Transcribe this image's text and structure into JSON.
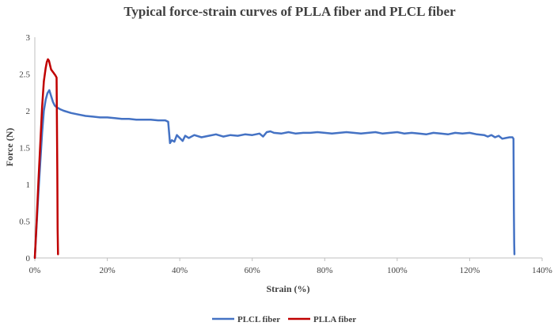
{
  "chart_data": {
    "type": "line",
    "title": "Typical force-strain curves of PLLA fiber and PLCL fiber",
    "xlabel": "Strain (%)",
    "ylabel": "Force (N)",
    "xlim": [
      0,
      140
    ],
    "ylim": [
      0,
      3
    ],
    "x_ticks": [
      0,
      20,
      40,
      60,
      80,
      100,
      120,
      140
    ],
    "x_tick_labels": [
      "0%",
      "20%",
      "40%",
      "60%",
      "80%",
      "100%",
      "120%",
      "140%"
    ],
    "y_ticks": [
      0,
      0.5,
      1,
      1.5,
      2,
      2.5,
      3
    ],
    "y_tick_labels": [
      "0",
      "0.5",
      "1",
      "1.5",
      "2",
      "2.5",
      "3"
    ],
    "grid": false,
    "legend_position": "bottom",
    "series": [
      {
        "name": "PLCL fiber",
        "color": "#4472C4",
        "x": [
          0,
          0.5,
          1,
          1.5,
          2,
          2.5,
          3,
          3.5,
          4,
          4.5,
          5,
          5.5,
          6,
          7,
          8,
          10,
          12,
          14,
          16,
          18,
          20,
          22,
          24,
          26,
          28,
          30,
          32,
          34,
          36,
          36.8,
          37.3,
          37.8,
          38.5,
          39.2,
          40,
          40.8,
          41.5,
          42.5,
          44,
          46,
          48,
          50,
          52,
          54,
          56,
          58,
          60,
          62,
          63,
          64,
          65,
          66,
          68,
          70,
          72,
          74,
          76,
          78,
          80,
          82,
          84,
          86,
          88,
          90,
          92,
          94,
          96,
          98,
          100,
          102,
          104,
          106,
          108,
          110,
          112,
          114,
          116,
          118,
          120,
          122,
          124,
          125,
          126,
          127,
          128,
          129,
          130,
          131,
          131.8,
          132.1,
          132.2,
          132.3,
          132.35
        ],
        "y": [
          0,
          0.45,
          0.9,
          1.3,
          1.7,
          2.0,
          2.15,
          2.24,
          2.28,
          2.2,
          2.12,
          2.07,
          2.05,
          2.02,
          2.0,
          1.97,
          1.95,
          1.93,
          1.92,
          1.91,
          1.91,
          1.9,
          1.89,
          1.89,
          1.88,
          1.88,
          1.88,
          1.87,
          1.87,
          1.85,
          1.56,
          1.6,
          1.58,
          1.67,
          1.63,
          1.59,
          1.66,
          1.63,
          1.67,
          1.64,
          1.66,
          1.68,
          1.65,
          1.67,
          1.66,
          1.68,
          1.67,
          1.69,
          1.65,
          1.71,
          1.72,
          1.7,
          1.69,
          1.71,
          1.69,
          1.7,
          1.7,
          1.71,
          1.7,
          1.69,
          1.7,
          1.71,
          1.7,
          1.69,
          1.7,
          1.71,
          1.69,
          1.7,
          1.71,
          1.69,
          1.7,
          1.69,
          1.68,
          1.7,
          1.69,
          1.68,
          1.7,
          1.69,
          1.7,
          1.68,
          1.67,
          1.65,
          1.67,
          1.64,
          1.66,
          1.62,
          1.63,
          1.64,
          1.64,
          1.62,
          0.65,
          0.2,
          0.05
        ]
      },
      {
        "name": "PLLA fiber",
        "color": "#C00000",
        "x": [
          0,
          0.5,
          1,
          1.5,
          2,
          2.5,
          3,
          3.3,
          3.6,
          3.9,
          4.2,
          4.5,
          4.8,
          5.1,
          5.4,
          5.7,
          6.0,
          6.2,
          6.3,
          6.4
        ],
        "y": [
          0,
          0.5,
          1.05,
          1.55,
          2.05,
          2.4,
          2.58,
          2.66,
          2.7,
          2.68,
          2.62,
          2.56,
          2.54,
          2.52,
          2.5,
          2.48,
          2.45,
          1.2,
          0.4,
          0.05
        ]
      }
    ]
  }
}
